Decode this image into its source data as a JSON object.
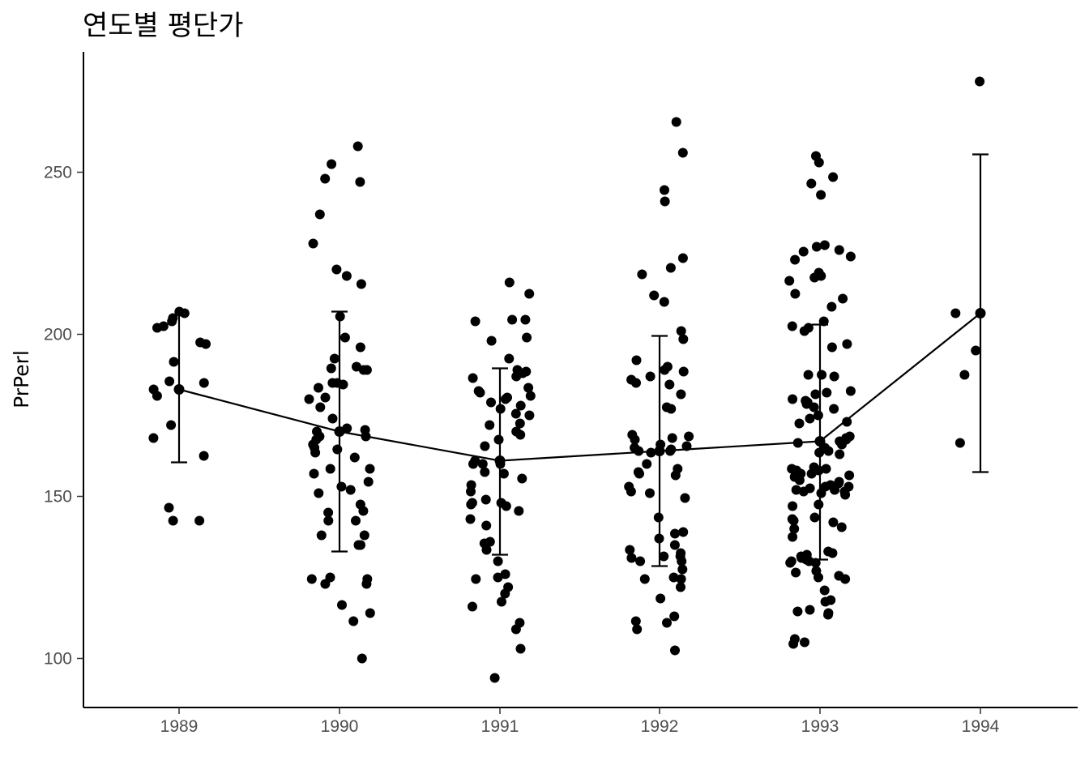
{
  "chart_data": {
    "type": "scatter",
    "title": "연도별 평단가",
    "xlabel": "",
    "ylabel": "PrPerl",
    "categories": [
      "1989",
      "1990",
      "1991",
      "1992",
      "1993",
      "1994"
    ],
    "ylim": [
      85,
      290
    ],
    "yticks": [
      100,
      150,
      200,
      250
    ],
    "grid": false,
    "legend": "none",
    "colors": {
      "points": "#000000",
      "line": "#000000",
      "axis": "#000000",
      "tick_text": "#4d4d4d"
    },
    "mean_line": [
      {
        "x": "1989",
        "y": 183
      },
      {
        "x": "1990",
        "y": 170
      },
      {
        "x": "1991",
        "y": 161
      },
      {
        "x": "1992",
        "y": 164
      },
      {
        "x": "1993",
        "y": 167
      },
      {
        "x": "1994",
        "y": 206.5
      }
    ],
    "error_bars": [
      {
        "x": "1989",
        "low": 160.5,
        "high": 206
      },
      {
        "x": "1990",
        "low": 133,
        "high": 207
      },
      {
        "x": "1991",
        "low": 132,
        "high": 189.5
      },
      {
        "x": "1992",
        "low": 128.5,
        "high": 199.5
      },
      {
        "x": "1993",
        "low": 130.5,
        "high": 203
      },
      {
        "x": "1994",
        "low": 157.5,
        "high": 255.5
      }
    ],
    "points": {
      "1989": [
        207,
        202.5,
        205,
        206.5,
        204,
        202,
        197,
        197.5,
        191.5,
        185,
        185.5,
        181,
        183,
        172,
        168,
        162.5,
        146.5,
        142.5,
        142.5
      ],
      "1990": [
        258,
        252.5,
        248,
        247,
        237,
        228,
        220,
        218,
        215.5,
        205.5,
        199,
        196,
        192.5,
        190,
        189,
        189.5,
        189,
        185,
        185,
        184.5,
        183.5,
        180.5,
        180,
        177.5,
        174,
        171,
        170.5,
        170,
        168.5,
        168.5,
        167.5,
        166,
        165,
        164.5,
        163.5,
        162,
        158.5,
        158.5,
        157,
        154.5,
        153,
        152,
        151,
        147.5,
        145.5,
        145,
        142.5,
        142.5,
        138,
        138,
        135,
        135,
        125,
        124.5,
        124.5,
        123,
        123,
        116.5,
        114,
        111.5,
        100
      ],
      "1991": [
        216,
        212.5,
        204.5,
        204.5,
        204,
        199,
        198,
        192.5,
        189,
        188.5,
        188,
        187,
        186.5,
        183.5,
        182.5,
        182,
        181,
        180.5,
        180,
        179,
        178,
        177,
        175,
        175.5,
        172.5,
        172,
        170,
        169,
        167.5,
        165.5,
        161,
        160,
        160,
        160,
        157.5,
        157,
        155.5,
        153.5,
        151.5,
        149,
        148,
        148,
        147.5,
        147,
        145.5,
        143,
        141,
        136,
        135.5,
        133.5,
        130,
        126,
        125,
        124.5,
        122,
        120,
        117.5,
        116,
        111,
        109,
        103,
        94
      ],
      "1992": [
        265.5,
        256,
        244.5,
        241,
        223.5,
        220.5,
        218.5,
        212,
        210,
        201,
        198.5,
        192,
        190,
        189,
        188.5,
        187,
        186,
        185,
        184.5,
        181.5,
        177.5,
        177,
        169,
        168.5,
        168,
        167.5,
        166,
        165.5,
        165,
        164.5,
        164,
        164,
        163.5,
        160,
        158.5,
        157.5,
        157,
        156.5,
        153,
        151.5,
        151,
        149.5,
        143.5,
        139,
        138.5,
        137,
        135,
        133.5,
        132.5,
        131.5,
        131.5,
        131,
        130,
        130,
        127.5,
        125,
        124.5,
        124.5,
        122,
        118.5,
        113,
        111.5,
        111,
        109,
        102.5
      ],
      "1993": [
        255,
        253,
        248.5,
        246.5,
        243,
        227.5,
        227,
        226,
        225.5,
        224,
        223,
        219,
        218,
        217.5,
        216.5,
        212.5,
        211,
        208.5,
        204,
        202.5,
        202,
        201,
        197,
        196,
        187.5,
        187.5,
        187,
        182.5,
        182,
        181.5,
        180,
        179.5,
        179,
        178.5,
        177.5,
        177,
        175,
        174,
        173,
        172.5,
        168.5,
        168,
        167.5,
        167,
        166.5,
        166,
        165,
        164,
        163.5,
        163,
        159,
        158.5,
        158.5,
        158,
        158,
        157,
        157,
        156.5,
        156,
        155,
        154.5,
        154,
        153.5,
        153,
        153,
        152.5,
        152,
        152,
        151.5,
        151.5,
        151,
        150.5,
        147.5,
        147,
        143.5,
        143,
        142.5,
        142,
        140.5,
        140,
        137.5,
        133,
        132.5,
        132,
        131.5,
        131,
        131,
        130.5,
        130,
        130,
        129.5,
        129.5,
        127,
        126.5,
        125.5,
        125,
        124.5,
        121,
        118,
        117.5,
        115,
        114.5,
        114,
        113.5,
        106,
        105,
        104.5
      ],
      "1994": [
        278,
        206.5,
        195,
        187.5,
        166.5
      ]
    }
  }
}
